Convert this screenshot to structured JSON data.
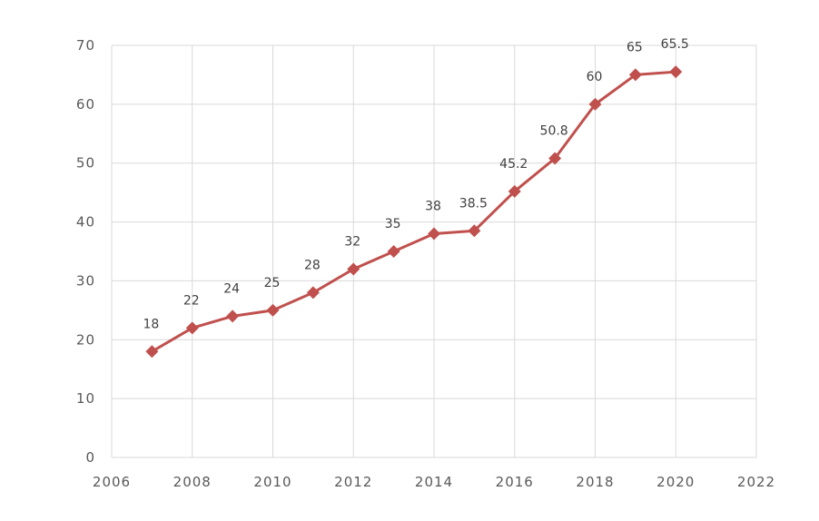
{
  "chart_data": {
    "type": "line",
    "title": "",
    "xlabel": "",
    "ylabel": "",
    "xlim": [
      2006,
      2022
    ],
    "ylim": [
      0,
      70
    ],
    "x_ticks": [
      2006,
      2008,
      2010,
      2012,
      2014,
      2016,
      2018,
      2020,
      2022
    ],
    "y_ticks": [
      0,
      10,
      20,
      30,
      40,
      50,
      60,
      70
    ],
    "grid": true,
    "legend": "none",
    "series": [
      {
        "color": "#C0504D",
        "marker": "diamond",
        "x": [
          2007,
          2008,
          2009,
          2010,
          2011,
          2012,
          2013,
          2014,
          2015,
          2016,
          2017,
          2018,
          2019,
          2020
        ],
        "values": [
          18,
          22,
          24,
          25,
          28,
          32,
          35,
          38,
          38.5,
          45.2,
          50.8,
          60,
          65,
          65.5
        ],
        "labels": [
          "18",
          "22",
          "24",
          "25",
          "28",
          "32",
          "35",
          "38",
          "38.5",
          "45.2",
          "50.8",
          "60",
          "65",
          "65.5"
        ]
      }
    ]
  }
}
